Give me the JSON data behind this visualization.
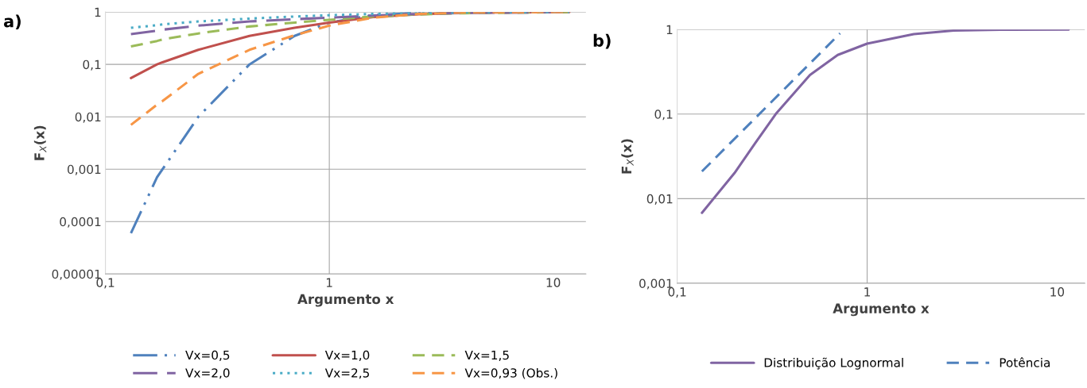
{
  "chart_data": [
    {
      "type": "line",
      "annotations": [
        "a)"
      ],
      "xlabel": "Argumento x",
      "ylabel": "F$_{X}$(x)",
      "log": "xy",
      "grid": "y",
      "legend": "bottom",
      "xlim": [
        0.1,
        14
      ],
      "xticks": [
        {
          "value": 0.1,
          "label": "0,1"
        },
        1,
        10
      ],
      "ylim": [
        1e-05,
        1
      ],
      "yticks": [
        {
          "value": 1e-05,
          "label": "0,00001"
        },
        {
          "value": 0.0001,
          "label": "0,0001"
        },
        {
          "value": 0.001,
          "label": "0,001"
        },
        {
          "value": 0.01,
          "label": "0,01"
        },
        {
          "value": 0.1,
          "label": "0,1"
        },
        1
      ],
      "ref_lines": [
        {
          "axis": "x",
          "value": 1,
          "label": null,
          "color": "#a6a6a6"
        }
      ],
      "x": [
        0.13,
        0.17,
        0.18,
        0.26,
        0.44,
        0.7,
        1,
        1.57,
        2.5,
        4,
        11.8
      ],
      "series": [
        {
          "name": "Vx=0,5",
          "color": "#4f81bd",
          "line_style": "dashdotdot",
          "values": [
            6e-05,
            0.0007,
            0.001,
            0.01,
            0.1,
            0.35,
            0.63,
            0.87,
            0.97,
            0.995,
            1
          ]
        },
        {
          "name": "Vx=1,0",
          "color": "#c0504d",
          "line_style": "solid",
          "values": [
            0.055,
            0.1,
            0.11,
            0.19,
            0.35,
            0.5,
            0.63,
            0.8,
            0.91,
            0.97,
            1
          ]
        },
        {
          "name": "Vx=1,5",
          "color": "#9bbb59",
          "line_style": "dashed",
          "values": [
            0.22,
            0.28,
            0.3,
            0.39,
            0.53,
            0.63,
            0.71,
            0.82,
            0.9,
            0.95,
            1
          ]
        },
        {
          "name": "Vx=2,0",
          "color": "#8064a2",
          "line_style": "longdash",
          "values": [
            0.38,
            0.44,
            0.46,
            0.55,
            0.66,
            0.73,
            0.78,
            0.86,
            0.92,
            0.96,
            1
          ]
        },
        {
          "name": "Vx=2,5",
          "color": "#4bacc6",
          "line_style": "dotted",
          "values": [
            0.5,
            0.56,
            0.58,
            0.66,
            0.75,
            0.82,
            0.87,
            0.92,
            0.95,
            0.98,
            1
          ]
        },
        {
          "name": "Vx=0,93 (Obs.)",
          "color": "#f79646",
          "line_style": "dashed",
          "values": [
            0.007,
            0.017,
            0.02,
            0.066,
            0.19,
            0.36,
            0.55,
            0.78,
            0.92,
            0.98,
            1
          ]
        }
      ]
    },
    {
      "type": "line",
      "annotations": [
        "b)"
      ],
      "xlabel": "Argumento x",
      "ylabel": "F$_{X}$(x)",
      "log": "xy",
      "grid": "y",
      "legend": "bottom",
      "xlim": [
        0.1,
        14
      ],
      "xticks": [
        {
          "value": 0.1,
          "label": "0,1"
        },
        1,
        10
      ],
      "ylim": [
        0.001,
        1
      ],
      "yticks": [
        {
          "value": 0.001,
          "label": "0,001"
        },
        {
          "value": 0.01,
          "label": "0,01"
        },
        {
          "value": 0.1,
          "label": "0,1"
        },
        1
      ],
      "ref_lines": [
        {
          "axis": "x",
          "value": 1,
          "label": null,
          "color": "#a6a6a6"
        }
      ],
      "series": [
        {
          "name": "Distribuição Lognormal",
          "color": "#8064a2",
          "line_style": "solid",
          "x": [
            0.135,
            0.2,
            0.257,
            0.33,
            0.5,
            0.7,
            1,
            1.76,
            2.85,
            5,
            11.5
          ],
          "values": [
            0.0068,
            0.02,
            0.045,
            0.1,
            0.29,
            0.5,
            0.68,
            0.88,
            0.97,
            0.995,
            1
          ]
        },
        {
          "name": "Potência",
          "color": "#4f81bd",
          "line_style": "dashed",
          "x": [
            0.135,
            0.72
          ],
          "values": [
            0.021,
            0.9
          ]
        }
      ]
    }
  ]
}
